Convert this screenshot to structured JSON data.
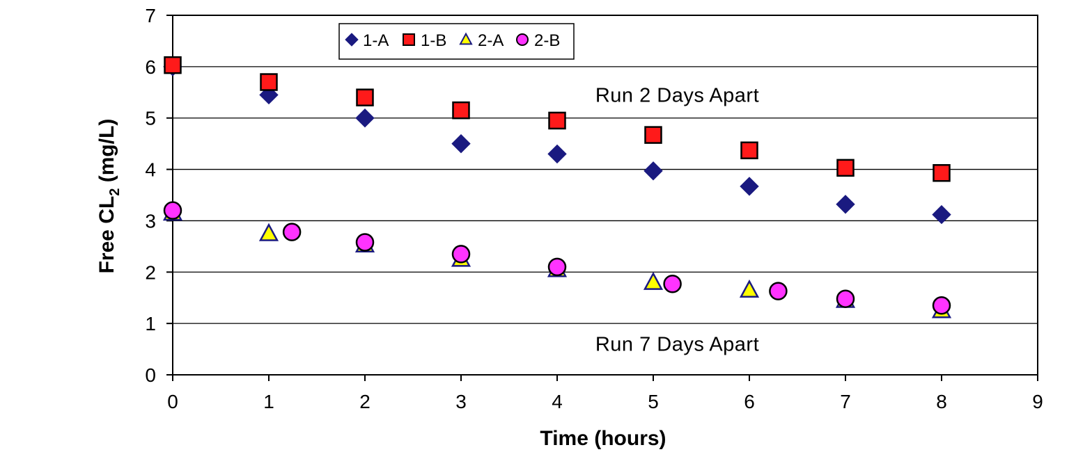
{
  "chart_data": {
    "type": "scatter",
    "xlabel": "Time (hours)",
    "ylabel_main": "Free CL",
    "ylabel_sub": "2",
    "ylabel_unit": " (mg/L)",
    "xlim": [
      0,
      9
    ],
    "ylim": [
      0,
      7
    ],
    "x_ticks": [
      "0",
      "1",
      "2",
      "3",
      "4",
      "5",
      "6",
      "7",
      "8",
      "9"
    ],
    "y_ticks": [
      "0",
      "1",
      "2",
      "3",
      "4",
      "5",
      "6",
      "7"
    ],
    "grid": "horizontal",
    "legend_position": "top-left",
    "annotations": [
      {
        "text": "Run 2 Days Apart",
        "x": 5.25,
        "y": 5.45
      },
      {
        "text": "Run 7 Days Apart",
        "x": 5.25,
        "y": 0.6
      }
    ],
    "series": [
      {
        "name": "1-A",
        "marker": "diamond",
        "color": "#1a1a80",
        "points": [
          [
            0,
            6.0
          ],
          [
            1,
            5.45
          ],
          [
            2,
            5.0
          ],
          [
            3,
            4.5
          ],
          [
            4,
            4.3
          ],
          [
            5,
            3.97
          ],
          [
            6,
            3.67
          ],
          [
            7,
            3.32
          ],
          [
            8,
            3.12
          ]
        ]
      },
      {
        "name": "1-B",
        "marker": "square",
        "color": "#ff1a1a",
        "points": [
          [
            0,
            6.03
          ],
          [
            1,
            5.7
          ],
          [
            2,
            5.4
          ],
          [
            3,
            5.15
          ],
          [
            4,
            4.95
          ],
          [
            5,
            4.67
          ],
          [
            6,
            4.37
          ],
          [
            7,
            4.03
          ],
          [
            8,
            3.93
          ]
        ]
      },
      {
        "name": "2-A",
        "marker": "triangle",
        "color": "#ffff00",
        "points": [
          [
            0,
            3.15
          ],
          [
            1,
            2.75
          ],
          [
            2,
            2.53
          ],
          [
            3,
            2.25
          ],
          [
            4,
            2.05
          ],
          [
            5,
            1.8
          ],
          [
            6,
            1.65
          ],
          [
            7,
            1.45
          ],
          [
            8,
            1.25
          ]
        ]
      },
      {
        "name": "2-B",
        "marker": "circle",
        "color": "#ff33ff",
        "points": [
          [
            0,
            3.2
          ],
          [
            1.24,
            2.78
          ],
          [
            2,
            2.58
          ],
          [
            3,
            2.35
          ],
          [
            4,
            2.1
          ],
          [
            5.2,
            1.77
          ],
          [
            6.3,
            1.63
          ],
          [
            7,
            1.48
          ],
          [
            8,
            1.35
          ]
        ]
      }
    ]
  }
}
